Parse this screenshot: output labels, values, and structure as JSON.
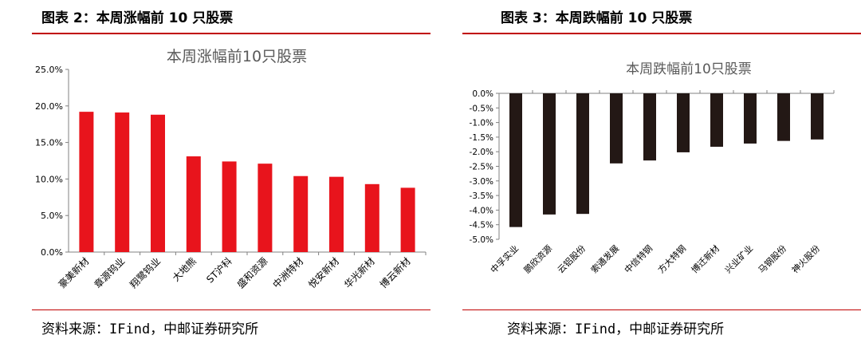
{
  "panels": [
    {
      "figure_title": "图表 2：本周涨幅前 10 只股票",
      "source": "资料来源：IFind，中邮证券研究所"
    },
    {
      "figure_title": "图表 3：本周跌幅前 10 只股票",
      "source": "资料来源：IFind，中邮证券研究所"
    }
  ],
  "chart_data": [
    {
      "type": "bar",
      "title": "本周涨幅前10只股票",
      "categories": [
        "豪美新材",
        "章源钨业",
        "翔鹭钨业",
        "大地熊",
        "ST沪科",
        "盛和资源",
        "中洲特材",
        "悦安新材",
        "华光新材",
        "博云新材"
      ],
      "values": [
        19.2,
        19.1,
        18.8,
        13.1,
        12.4,
        12.1,
        10.4,
        10.3,
        9.3,
        8.8
      ],
      "value_unit": "%",
      "ylim": [
        0,
        25
      ],
      "yticks": [
        "0.0%",
        "5.0%",
        "10.0%",
        "15.0%",
        "20.0%",
        "25.0%"
      ],
      "grid": false,
      "bar_color": "#e8141c"
    },
    {
      "type": "bar",
      "title": "本周跌幅前10只股票",
      "categories": [
        "中孚实业",
        "鹏欣资源",
        "云铝股份",
        "索通发展",
        "中信特钢",
        "方大特钢",
        "博迁新材",
        "兴业矿业",
        "马钢股份",
        "神火股份"
      ],
      "values": [
        -4.58,
        -4.15,
        -4.13,
        -2.4,
        -2.3,
        -2.02,
        -1.83,
        -1.72,
        -1.63,
        -1.58
      ],
      "value_unit": "%",
      "ylim": [
        -5,
        0
      ],
      "yticks": [
        "0.0%",
        "-0.5%",
        "-1.0%",
        "-1.5%",
        "-2.0%",
        "-2.5%",
        "-3.0%",
        "-3.5%",
        "-4.0%",
        "-4.5%",
        "-5.0%"
      ],
      "grid": false,
      "bar_color": "#231815"
    }
  ]
}
